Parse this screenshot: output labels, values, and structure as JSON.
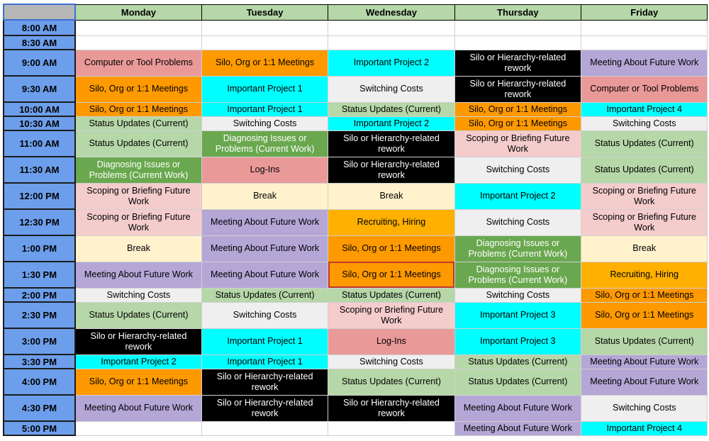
{
  "days": [
    "Monday",
    "Tuesday",
    "Wednesday",
    "Thursday",
    "Friday"
  ],
  "categories": {
    "Computer or Tool Problems": "#ea9999",
    "Silo, Org or 1:1 Meetings": "#ff9900",
    "Important Project 1": "#00ffff",
    "Important Project 2": "#00ffff",
    "Important Project 3": "#00ffff",
    "Important Project 4": "#00ffff",
    "Silo or Hierarchy-related rework": "#000000",
    "Meeting About Future Work": "#b4a7d6",
    "Switching Costs": "#efefef",
    "Status Updates (Current)": "#b6d7a8",
    "Diagnosing Issues or Problems (Current Work)": "#6aa84f",
    "Scoping or Briefing Future Work": "#f4cccc",
    "Log-Ins": "#ea9999",
    "Break": "#fff2cc",
    "Recruiting, Hiring": "#ffb000"
  },
  "text_colors": {
    "Silo or Hierarchy-related rework": "#ffffff",
    "Diagnosing Issues or Problems (Current Work)": "#ffffff"
  },
  "rows": [
    {
      "time": "8:00 AM",
      "h": 22,
      "cells": [
        "",
        "",
        "",
        "",
        ""
      ]
    },
    {
      "time": "8:30 AM",
      "h": 20,
      "cells": [
        "",
        "",
        "",
        "",
        ""
      ]
    },
    {
      "time": "9:00 AM",
      "h": 37,
      "cells": [
        "Computer or Tool Problems",
        "Silo, Org or 1:1 Meetings",
        "Important Project 2",
        "Silo or Hierarchy-related rework",
        "Meeting About Future Work"
      ]
    },
    {
      "time": "9:30 AM",
      "h": 37,
      "cells": [
        "Silo, Org or 1:1 Meetings",
        "Important Project 1",
        "Switching Costs",
        "Silo or Hierarchy-related rework",
        "Computer or Tool Problems"
      ]
    },
    {
      "time": "10:00 AM",
      "h": 20,
      "cells": [
        "Silo, Org or 1:1 Meetings",
        "Important Project 1",
        "Status Updates (Current)",
        "Silo, Org or 1:1 Meetings",
        "Important Project 4"
      ]
    },
    {
      "time": "10:30 AM",
      "h": 20,
      "cells": [
        "Status Updates (Current)",
        "Switching Costs",
        "Important Project 2",
        "Silo, Org or 1:1 Meetings",
        "Switching Costs"
      ]
    },
    {
      "time": "11:00 AM",
      "h": 37,
      "cells": [
        "Status Updates (Current)",
        "Diagnosing Issues or Problems (Current Work)",
        "Silo or Hierarchy-related rework",
        "Scoping or Briefing Future Work",
        "Status Updates (Current)"
      ]
    },
    {
      "time": "11:30 AM",
      "h": 37,
      "cells": [
        "Diagnosing Issues or Problems (Current Work)",
        "Log-Ins",
        "Silo or Hierarchy-related rework",
        "Switching Costs",
        "Status Updates (Current)"
      ]
    },
    {
      "time": "12:00 PM",
      "h": 37,
      "cells": [
        "Scoping or Briefing Future Work",
        "Break",
        "Break",
        "Important Project 2",
        "Scoping or Briefing Future Work"
      ]
    },
    {
      "time": "12:30 PM",
      "h": 37,
      "cells": [
        "Scoping or Briefing Future Work",
        "Meeting About Future Work",
        "Recruiting, Hiring",
        "Switching Costs",
        "Scoping or Briefing Future Work"
      ]
    },
    {
      "time": "1:00 PM",
      "h": 37,
      "cells": [
        "Break",
        "Meeting About Future Work",
        "Silo, Org or 1:1 Meetings",
        "Diagnosing Issues or Problems (Current Work)",
        "Break"
      ]
    },
    {
      "time": "1:30 PM",
      "h": 37,
      "cells": [
        "Meeting About Future Work",
        "Meeting About Future Work",
        "Silo, Org or 1:1 Meetings",
        "Diagnosing Issues or Problems (Current Work)",
        "Recruiting, Hiring"
      ]
    },
    {
      "time": "2:00 PM",
      "h": 20,
      "cells": [
        "Switching Costs",
        "Status Updates (Current)",
        "Status Updates (Current)",
        "Switching Costs",
        "Silo, Org or 1:1 Meetings"
      ]
    },
    {
      "time": "2:30 PM",
      "h": 37,
      "cells": [
        "Status Updates (Current)",
        "Switching Costs",
        "Scoping or Briefing Future Work",
        "Important Project 3",
        "Silo, Org or 1:1 Meetings"
      ]
    },
    {
      "time": "3:00 PM",
      "h": 37,
      "cells": [
        "Silo or Hierarchy-related rework",
        "Important Project 1",
        "Log-Ins",
        "Important Project 3",
        "Status Updates (Current)"
      ]
    },
    {
      "time": "3:30 PM",
      "h": 20,
      "cells": [
        "Important Project 2",
        "Important Project 1",
        "Switching Costs",
        "Status Updates (Current)",
        "Meeting About Future Work"
      ]
    },
    {
      "time": "4:00 PM",
      "h": 37,
      "cells": [
        "Silo, Org or 1:1 Meetings",
        "Silo or Hierarchy-related rework",
        "Status Updates (Current)",
        "Status Updates (Current)",
        "Meeting About Future Work"
      ]
    },
    {
      "time": "4:30 PM",
      "h": 37,
      "cells": [
        "Meeting About Future Work",
        "Silo or Hierarchy-related rework",
        "Silo or Hierarchy-related rework",
        "Meeting About Future Work",
        "Switching Costs"
      ]
    },
    {
      "time": "5:00 PM",
      "h": 20,
      "cells": [
        "",
        "",
        "",
        "Meeting About Future Work",
        "Important Project 4"
      ]
    }
  ],
  "selected_cell": {
    "row": 11,
    "col": 2
  }
}
